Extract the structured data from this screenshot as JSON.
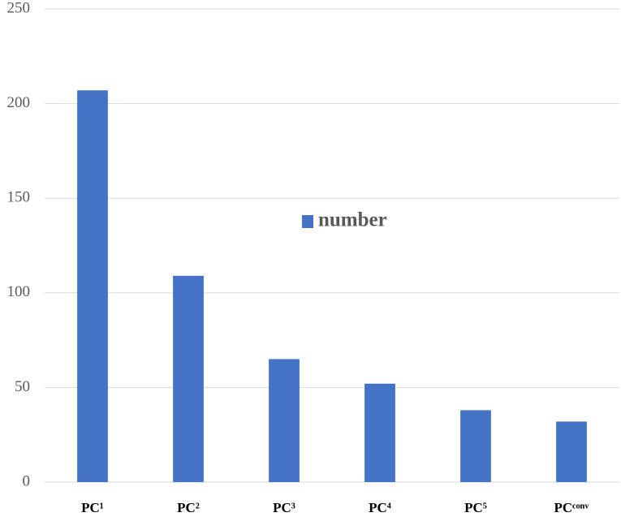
{
  "chart_data": {
    "type": "bar",
    "categories": [
      "PC¹",
      "PC²",
      "PC³",
      "PC⁴",
      "PC⁵",
      "PCᶜᵒⁿᵛ"
    ],
    "series": [
      {
        "name": "number",
        "color": "#4472c4",
        "values": [
          207,
          109,
          65,
          52,
          38,
          32
        ]
      }
    ],
    "ylim": [
      0,
      250
    ],
    "yticks": [
      0,
      50,
      100,
      150,
      200,
      250
    ],
    "grid": true,
    "legend": "center"
  }
}
